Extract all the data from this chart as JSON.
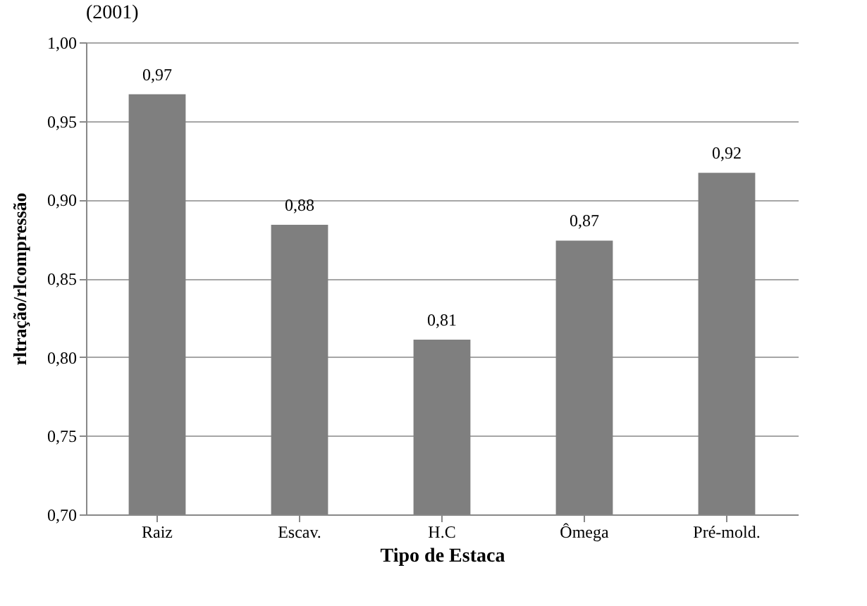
{
  "chart_data": {
    "type": "bar",
    "title": "(2001)",
    "xlabel": "Tipo de Estaca",
    "ylabel": "rltração/rlcompressão",
    "categories": [
      "Raiz",
      "Escav.",
      "H.C",
      "Ômega",
      "Pré-mold."
    ],
    "values": [
      0.967,
      0.884,
      0.811,
      0.874,
      0.917
    ],
    "value_labels": [
      "0,97",
      "0,88",
      "0,81",
      "0,87",
      "0,92"
    ],
    "color": "#7f7f7f",
    "ylim": [
      0.7,
      1.0
    ],
    "yticks": [
      {
        "value": 0.7,
        "label": "0,70"
      },
      {
        "value": 0.75,
        "label": "0,75"
      },
      {
        "value": 0.8,
        "label": "0,80"
      },
      {
        "value": 0.85,
        "label": "0,85"
      },
      {
        "value": 0.9,
        "label": "0,90"
      },
      {
        "value": 0.95,
        "label": "0,95"
      },
      {
        "value": 1.0,
        "label": "1,00"
      }
    ],
    "grid": "y"
  }
}
